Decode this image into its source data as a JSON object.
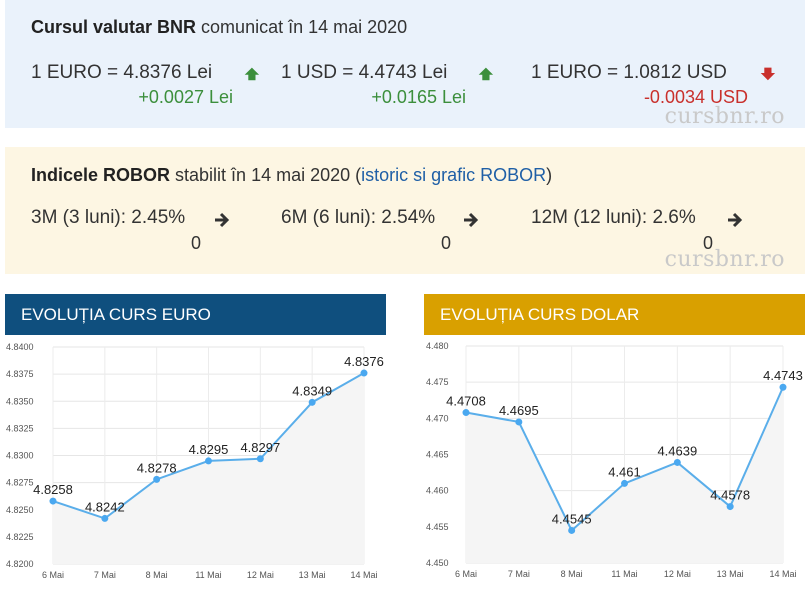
{
  "bnr": {
    "title_bold": "Cursul valutar BNR",
    "title_rest": " comunicat în 14 mai 2020",
    "rates": [
      {
        "label": "1 EURO = 4.8376 Lei",
        "delta": "+0.0027 Lei",
        "direction": "up"
      },
      {
        "label": "1 USD = 4.4743 Lei",
        "delta": "+0.0165 Lei",
        "direction": "up"
      },
      {
        "label": "1 EURO = 1.0812 USD",
        "delta": "-0.0034 USD",
        "direction": "down"
      }
    ],
    "watermark": "cursbnr.ro"
  },
  "robor": {
    "title_bold": "Indicele ROBOR",
    "title_rest": " stabilit în 14 mai 2020 (",
    "link": "istoric si grafic ROBOR",
    "title_end": ")",
    "items": [
      {
        "label": "3M (3 luni): 2.45%",
        "delta": "0",
        "direction": "flat"
      },
      {
        "label": "6M (6 luni): 2.54%",
        "delta": "0",
        "direction": "flat"
      },
      {
        "label": "12M (12 luni): 2.6%",
        "delta": "0",
        "direction": "flat"
      }
    ],
    "watermark": "cursbnr.ro"
  },
  "colors": {
    "euro_header": "#0f4f7e",
    "dollar_header": "#d9a000",
    "up": "#3c8f3c",
    "down": "#c9302c",
    "line": "#5aaeea",
    "point": "#4aa8f0"
  },
  "chart_data": [
    {
      "type": "line",
      "title": "EVOLUȚIA CURS EURO",
      "categories": [
        "6 Mai",
        "7 Mai",
        "8 Mai",
        "11 Mai",
        "12 Mai",
        "13 Mai",
        "14 Mai"
      ],
      "values": [
        4.8258,
        4.8242,
        4.8278,
        4.8295,
        4.8297,
        4.8349,
        4.8376
      ],
      "value_labels": [
        "4.8258",
        "4.8242",
        "4.8278",
        "4.8295",
        "4.8297",
        "4.8349",
        "4.8376"
      ],
      "ylim": [
        4.82,
        4.84
      ],
      "yticks": [
        "4.8200",
        "4.8225",
        "4.8250",
        "4.8275",
        "4.8300",
        "4.8325",
        "4.8350",
        "4.8375",
        "4.8400"
      ],
      "grid": true
    },
    {
      "type": "line",
      "title": "EVOLUȚIA CURS DOLAR",
      "categories": [
        "6 Mai",
        "7 Mai",
        "8 Mai",
        "11 Mai",
        "12 Mai",
        "13 Mai",
        "14 Mai"
      ],
      "values": [
        4.4708,
        4.4695,
        4.4545,
        4.461,
        4.4639,
        4.4578,
        4.4743
      ],
      "value_labels": [
        "4.4708",
        "4.4695",
        "4.4545",
        "4.461",
        "4.4639",
        "4.4578",
        "4.4743"
      ],
      "ylim": [
        4.45,
        4.48
      ],
      "yticks": [
        "4.450",
        "4.455",
        "4.460",
        "4.465",
        "4.470",
        "4.475",
        "4.480"
      ],
      "grid": true
    }
  ]
}
